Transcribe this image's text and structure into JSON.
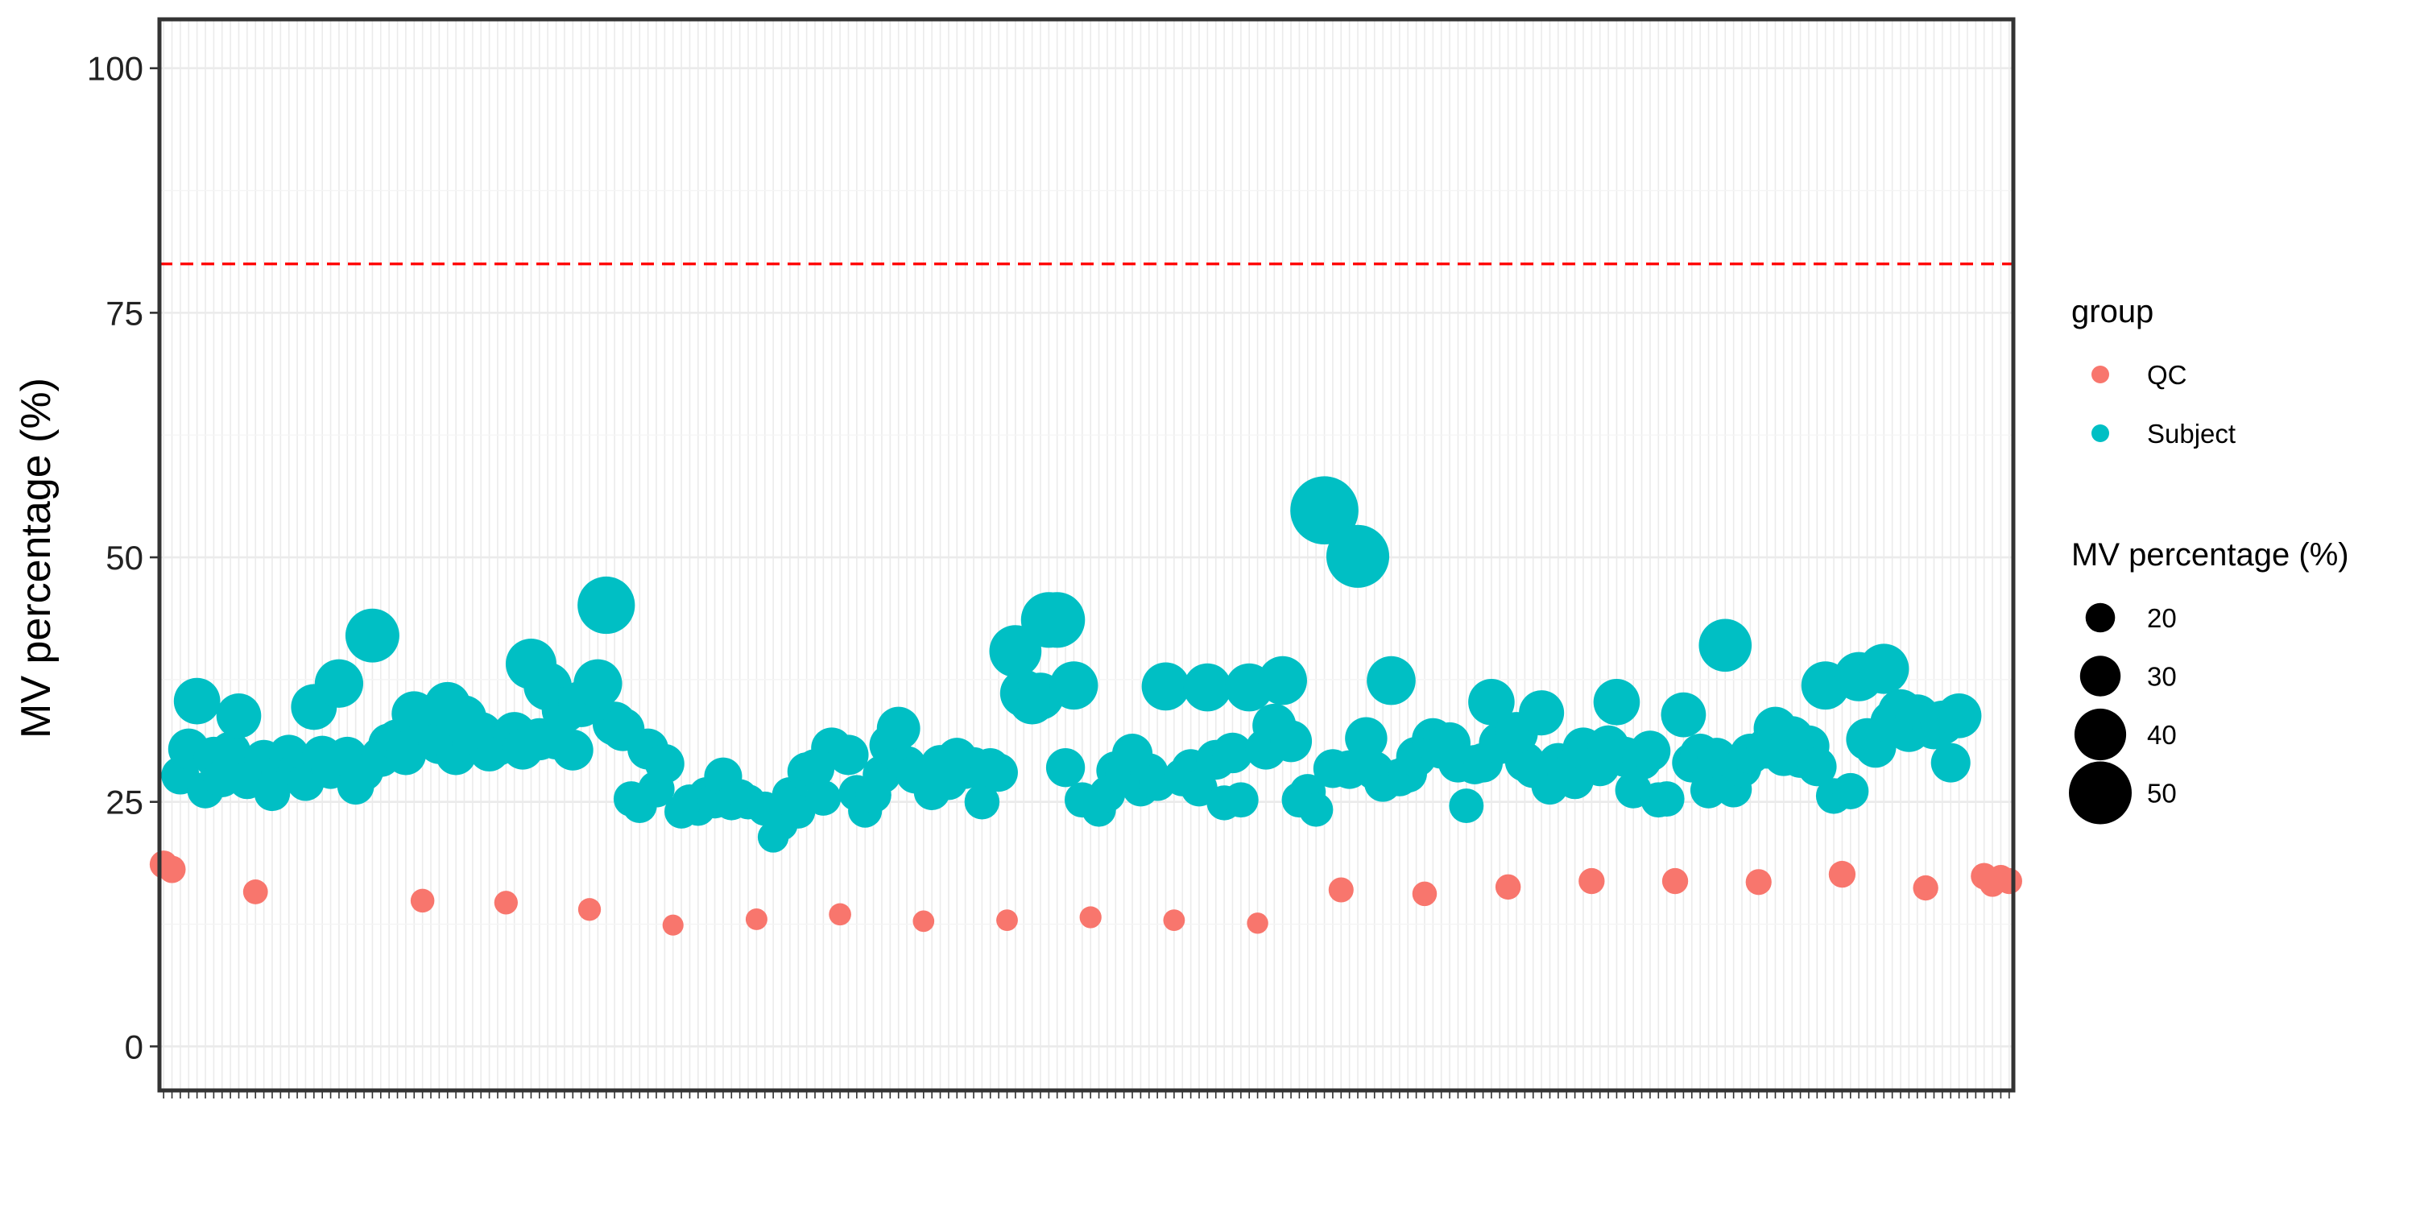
{
  "chart_data": {
    "type": "scatter",
    "title": "",
    "xlabel": "",
    "ylabel": "MV percentage (%)",
    "ylim": [
      -4.5,
      105
    ],
    "yticks": [
      0,
      25,
      50,
      75,
      100
    ],
    "x_tick_labels_legible": false,
    "reference_line": {
      "y": 80,
      "color": "#ff0000",
      "style": "dashed"
    },
    "grid": true,
    "legend": {
      "placement": "right",
      "color_title": "group",
      "size_title": "MV percentage (%)",
      "size_breaks": [
        20,
        30,
        40,
        50
      ],
      "size_key_color": "#000000"
    },
    "series": [
      {
        "name": "QC",
        "color": "#F8766D",
        "points": [
          [
            1,
            18.6
          ],
          [
            2,
            18.1
          ],
          [
            12,
            15.8
          ],
          [
            32,
            14.9
          ],
          [
            42,
            14.7
          ],
          [
            52,
            14.0
          ],
          [
            62,
            12.4
          ],
          [
            72,
            13.0
          ],
          [
            82,
            13.5
          ],
          [
            92,
            12.8
          ],
          [
            102,
            12.9
          ],
          [
            112,
            13.2
          ],
          [
            122,
            12.9
          ],
          [
            132,
            12.6
          ],
          [
            142,
            16.0
          ],
          [
            152,
            15.6
          ],
          [
            162,
            16.3
          ],
          [
            172,
            16.9
          ],
          [
            182,
            16.9
          ],
          [
            192,
            16.8
          ],
          [
            202,
            17.6
          ],
          [
            212,
            16.2
          ],
          [
            219,
            17.4
          ],
          [
            220,
            16.6
          ],
          [
            221,
            17.2
          ],
          [
            222,
            16.9
          ]
        ]
      },
      {
        "name": "Subject",
        "color": "#00BFC4",
        "points": [
          [
            3,
            27.7
          ],
          [
            4,
            30.4
          ],
          [
            5,
            35.3
          ],
          [
            6,
            26.2
          ],
          [
            7,
            29.6
          ],
          [
            8,
            27.4
          ],
          [
            9,
            30.1
          ],
          [
            10,
            33.8
          ],
          [
            11,
            27.2
          ],
          [
            13,
            29.3
          ],
          [
            14,
            25.9
          ],
          [
            15,
            28.0
          ],
          [
            16,
            29.8
          ],
          [
            17,
            28.2
          ],
          [
            18,
            27.0
          ],
          [
            19,
            34.7
          ],
          [
            20,
            29.7
          ],
          [
            21,
            28.3
          ],
          [
            22,
            37.1
          ],
          [
            23,
            29.6
          ],
          [
            24,
            26.6
          ],
          [
            25,
            28.1
          ],
          [
            26,
            42.0
          ],
          [
            27,
            29.6
          ],
          [
            28,
            30.9
          ],
          [
            29,
            31.3
          ],
          [
            30,
            29.8
          ],
          [
            31,
            34.0
          ],
          [
            33,
            32.3
          ],
          [
            34,
            31.0
          ],
          [
            35,
            34.9
          ],
          [
            36,
            29.8
          ],
          [
            37,
            33.6
          ],
          [
            38,
            31.0
          ],
          [
            39,
            32.0
          ],
          [
            40,
            30.2
          ],
          [
            41,
            30.8
          ],
          [
            43,
            32.0
          ],
          [
            44,
            30.4
          ],
          [
            45,
            39.1
          ],
          [
            46,
            31.4
          ],
          [
            47,
            36.8
          ],
          [
            48,
            31.5
          ],
          [
            49,
            34.4
          ],
          [
            50,
            30.3
          ],
          [
            51,
            35.0
          ],
          [
            53,
            37.1
          ],
          [
            54,
            45.1
          ],
          [
            55,
            33.0
          ],
          [
            56,
            32.4
          ],
          [
            57,
            25.3
          ],
          [
            58,
            24.6
          ],
          [
            59,
            30.4
          ],
          [
            60,
            26.3
          ],
          [
            61,
            28.9
          ],
          [
            63,
            24.0
          ],
          [
            64,
            25.0
          ],
          [
            65,
            24.3
          ],
          [
            66,
            25.7
          ],
          [
            67,
            25.1
          ],
          [
            68,
            27.6
          ],
          [
            69,
            24.9
          ],
          [
            70,
            25.5
          ],
          [
            71,
            25.0
          ],
          [
            73,
            24.3
          ],
          [
            74,
            21.4
          ],
          [
            75,
            22.7
          ],
          [
            76,
            25.7
          ],
          [
            77,
            24.0
          ],
          [
            78,
            28.1
          ],
          [
            79,
            28.4
          ],
          [
            80,
            25.4
          ],
          [
            81,
            30.5
          ],
          [
            83,
            29.8
          ],
          [
            84,
            25.9
          ],
          [
            85,
            24.1
          ],
          [
            86,
            25.7
          ],
          [
            87,
            27.8
          ],
          [
            88,
            30.8
          ],
          [
            89,
            32.5
          ],
          [
            90,
            28.7
          ],
          [
            91,
            27.8
          ],
          [
            93,
            26.0
          ],
          [
            94,
            28.8
          ],
          [
            95,
            27.1
          ],
          [
            96,
            29.5
          ],
          [
            97,
            28.3
          ],
          [
            98,
            28.6
          ],
          [
            99,
            25.0
          ],
          [
            100,
            28.5
          ],
          [
            101,
            28.0
          ],
          [
            103,
            40.4
          ],
          [
            104,
            36.1
          ],
          [
            105,
            35.3
          ],
          [
            106,
            35.8
          ],
          [
            107,
            43.6
          ],
          [
            108,
            43.6
          ],
          [
            109,
            28.5
          ],
          [
            110,
            36.9
          ],
          [
            111,
            25.2
          ],
          [
            113,
            24.2
          ],
          [
            114,
            25.8
          ],
          [
            115,
            28.2
          ],
          [
            116,
            27.8
          ],
          [
            117,
            29.9
          ],
          [
            118,
            26.4
          ],
          [
            119,
            28.0
          ],
          [
            120,
            27.0
          ],
          [
            121,
            36.8
          ],
          [
            123,
            27.5
          ],
          [
            124,
            28.4
          ],
          [
            125,
            26.4
          ],
          [
            126,
            36.7
          ],
          [
            127,
            29.3
          ],
          [
            128,
            24.9
          ],
          [
            129,
            30.0
          ],
          [
            130,
            25.2
          ],
          [
            131,
            36.7
          ],
          [
            133,
            30.4
          ],
          [
            134,
            32.8
          ],
          [
            135,
            37.4
          ],
          [
            136,
            31.2
          ],
          [
            137,
            25.2
          ],
          [
            138,
            26.0
          ],
          [
            139,
            24.2
          ],
          [
            140,
            54.8
          ],
          [
            141,
            28.4
          ],
          [
            143,
            28.3
          ],
          [
            144,
            50.1
          ],
          [
            145,
            31.5
          ],
          [
            146,
            28.2
          ],
          [
            147,
            26.9
          ],
          [
            148,
            37.4
          ],
          [
            149,
            27.5
          ],
          [
            150,
            27.9
          ],
          [
            151,
            29.6
          ],
          [
            153,
            31.4
          ],
          [
            154,
            30.5
          ],
          [
            155,
            31.0
          ],
          [
            156,
            29.0
          ],
          [
            157,
            24.6
          ],
          [
            158,
            28.8
          ],
          [
            159,
            29.0
          ],
          [
            160,
            35.2
          ],
          [
            161,
            31.0
          ],
          [
            163,
            32.0
          ],
          [
            164,
            29.1
          ],
          [
            165,
            28.4
          ],
          [
            166,
            34.1
          ],
          [
            167,
            26.6
          ],
          [
            168,
            29.0
          ],
          [
            169,
            27.8
          ],
          [
            170,
            27.2
          ],
          [
            171,
            30.5
          ],
          [
            173,
            28.6
          ],
          [
            174,
            30.7
          ],
          [
            175,
            35.2
          ],
          [
            176,
            29.6
          ],
          [
            177,
            26.2
          ],
          [
            178,
            29.3
          ],
          [
            179,
            30.2
          ],
          [
            180,
            25.2
          ],
          [
            181,
            25.3
          ],
          [
            183,
            33.9
          ],
          [
            184,
            29.0
          ],
          [
            185,
            29.9
          ],
          [
            186,
            26.2
          ],
          [
            187,
            29.5
          ],
          [
            188,
            41.0
          ],
          [
            189,
            26.3
          ],
          [
            190,
            28.5
          ],
          [
            191,
            29.9
          ],
          [
            193,
            30.5
          ],
          [
            194,
            32.5
          ],
          [
            195,
            29.7
          ],
          [
            196,
            31.6
          ],
          [
            197,
            29.5
          ],
          [
            198,
            30.7
          ],
          [
            199,
            28.6
          ],
          [
            200,
            36.9
          ],
          [
            201,
            25.6
          ],
          [
            203,
            26.1
          ],
          [
            204,
            37.8
          ],
          [
            205,
            31.4
          ],
          [
            206,
            30.6
          ],
          [
            207,
            38.6
          ],
          [
            208,
            33.1
          ],
          [
            209,
            34.2
          ],
          [
            210,
            32.3
          ],
          [
            211,
            33.7
          ],
          [
            213,
            32.6
          ],
          [
            214,
            33.1
          ],
          [
            215,
            29.0
          ],
          [
            216,
            33.8
          ]
        ]
      }
    ]
  }
}
